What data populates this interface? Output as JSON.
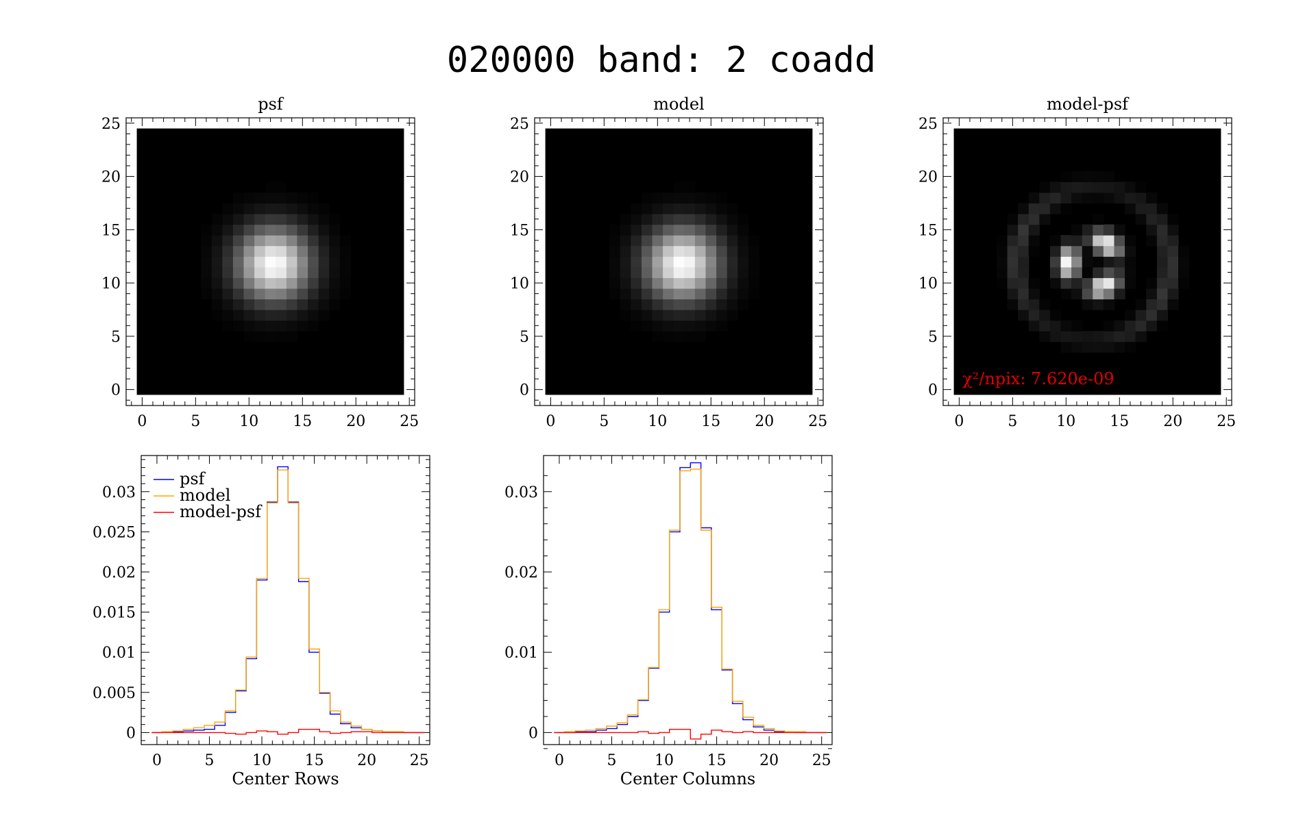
{
  "figure": {
    "title": "020000 band: 2 coadd"
  },
  "chart_data": [
    {
      "type": "heatmap",
      "title": "psf",
      "xlim": [
        -1.5,
        25.5
      ],
      "ylim": [
        -1.5,
        25.5
      ],
      "xticks": [
        "0",
        "5",
        "10",
        "15",
        "20",
        "25"
      ],
      "yticks": [
        "0",
        "5",
        "10",
        "15",
        "20",
        "25"
      ],
      "grid_size": 25,
      "center": [
        12.3,
        11.8
      ],
      "sigma": 2.4,
      "colormap": "grayscale"
    },
    {
      "type": "heatmap",
      "title": "model",
      "xlim": [
        -1.5,
        25.5
      ],
      "ylim": [
        -1.5,
        25.5
      ],
      "xticks": [
        "0",
        "5",
        "10",
        "15",
        "20",
        "25"
      ],
      "yticks": [
        "0",
        "5",
        "10",
        "15",
        "20",
        "25"
      ],
      "grid_size": 25,
      "center": [
        12.3,
        11.8
      ],
      "sigma": 2.4,
      "colormap": "grayscale"
    },
    {
      "type": "heatmap",
      "title": "model-psf",
      "xlim": [
        -1.5,
        25.5
      ],
      "ylim": [
        -1.5,
        25.5
      ],
      "xticks": [
        "0",
        "5",
        "10",
        "15",
        "20",
        "25"
      ],
      "yticks": [
        "0",
        "5",
        "10",
        "15",
        "20",
        "25"
      ],
      "grid_size": 25,
      "center": [
        12.5,
        11.8
      ],
      "colormap": "grayscale",
      "annotation": "χ²/npix: 7.620e-09",
      "annotation_color": "#e00000"
    },
    {
      "type": "line",
      "title": "",
      "xlabel": "Center Rows",
      "xlim": [
        -1.5,
        26
      ],
      "ylim": [
        -0.0015,
        0.0345
      ],
      "xticks": [
        0,
        5,
        10,
        15,
        20,
        25
      ],
      "yticks": [
        0,
        0.005,
        0.01,
        0.015,
        0.02,
        0.025,
        0.03
      ],
      "ytick_labels": [
        "0",
        "0.005",
        "0.01",
        "0.015",
        "0.02",
        "0.025",
        "0.03"
      ],
      "legend": "top-left",
      "x": [
        0,
        1,
        2,
        3,
        4,
        5,
        6,
        7,
        8,
        9,
        10,
        11,
        12,
        13,
        14,
        15,
        16,
        17,
        18,
        19,
        20,
        21,
        22,
        23,
        24,
        25
      ],
      "series": [
        {
          "name": "psf",
          "color": "#0000ff",
          "values": [
            0.0,
            0.0001,
            0.0001,
            0.0002,
            0.0003,
            0.0004,
            0.0009,
            0.0025,
            0.0052,
            0.0092,
            0.019,
            0.0287,
            0.0331,
            0.0287,
            0.0188,
            0.01,
            0.0049,
            0.0023,
            0.0011,
            0.0006,
            0.0004,
            0.0002,
            0.0001,
            0.0001,
            0.0,
            0.0
          ]
        },
        {
          "name": "model",
          "color": "#ffa500",
          "values": [
            0.0,
            0.0001,
            0.0002,
            0.0004,
            0.0006,
            0.0009,
            0.0013,
            0.0027,
            0.0053,
            0.0094,
            0.0192,
            0.0286,
            0.0327,
            0.0286,
            0.0192,
            0.0104,
            0.005,
            0.0027,
            0.0013,
            0.0008,
            0.0004,
            0.0002,
            0.0001,
            0.0001,
            0.0,
            0.0
          ]
        },
        {
          "name": "model-psf",
          "color": "#ff0000",
          "values": [
            0.0,
            0.0,
            0.0,
            0.0,
            0.0,
            0.0,
            0.0,
            -0.0001,
            -0.0002,
            0.0,
            0.0002,
            0.0001,
            -0.0002,
            0.0,
            0.0004,
            0.0004,
            0.0001,
            -0.0001,
            0.0,
            0.0001,
            0.0001,
            0.0,
            0.0,
            0.0,
            0.0,
            0.0
          ]
        }
      ]
    },
    {
      "type": "line",
      "title": "",
      "xlabel": "Center Columns",
      "xlim": [
        -1.5,
        26
      ],
      "ylim": [
        -0.0015,
        0.0345
      ],
      "xticks": [
        0,
        5,
        10,
        15,
        20,
        25
      ],
      "yticks": [
        0,
        0.01,
        0.02,
        0.03
      ],
      "ytick_labels": [
        "0",
        "0.01",
        "0.02",
        "0.03"
      ],
      "x": [
        0,
        1,
        2,
        3,
        4,
        5,
        6,
        7,
        8,
        9,
        10,
        11,
        12,
        13,
        14,
        15,
        16,
        17,
        18,
        19,
        20,
        21,
        22,
        23,
        24,
        25
      ],
      "series": [
        {
          "name": "psf",
          "color": "#0000ff",
          "values": [
            0.0,
            0.0,
            0.0001,
            0.0001,
            0.0003,
            0.0005,
            0.001,
            0.002,
            0.004,
            0.008,
            0.015,
            0.025,
            0.033,
            0.0336,
            0.0255,
            0.0153,
            0.0078,
            0.0036,
            0.0016,
            0.0007,
            0.0003,
            0.0001,
            0.0001,
            0.0,
            0.0,
            0.0
          ]
        },
        {
          "name": "model",
          "color": "#ffa500",
          "values": [
            0.0,
            0.0001,
            0.0002,
            0.0003,
            0.0005,
            0.0008,
            0.0012,
            0.0022,
            0.0041,
            0.0081,
            0.0153,
            0.0252,
            0.0326,
            0.0328,
            0.0252,
            0.0156,
            0.0079,
            0.0039,
            0.0019,
            0.0009,
            0.0005,
            0.0002,
            0.0001,
            0.0001,
            0.0,
            0.0
          ]
        },
        {
          "name": "model-psf",
          "color": "#ff0000",
          "values": [
            0.0,
            0.0,
            0.0,
            0.0,
            0.0,
            0.0,
            0.0,
            0.0,
            0.0001,
            -0.0001,
            0.0,
            0.0004,
            0.0004,
            -0.0008,
            -0.0002,
            0.0003,
            0.0001,
            0.0,
            0.0001,
            0.0,
            0.0,
            0.0,
            0.0,
            0.0,
            0.0,
            0.0
          ]
        }
      ]
    }
  ]
}
